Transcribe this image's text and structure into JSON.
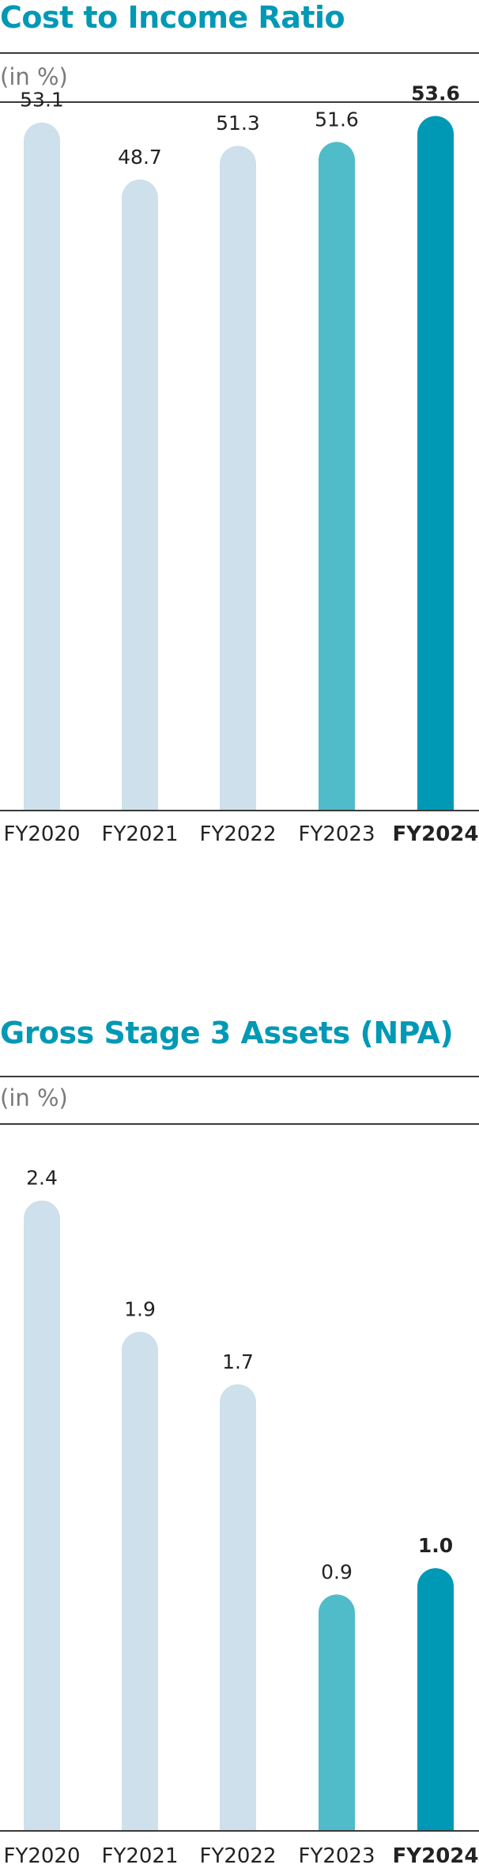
{
  "chart_data": [
    {
      "type": "bar",
      "title": "Cost to Income Ratio",
      "unit_label": "(in %)",
      "categories": [
        "FY2020",
        "FY2021",
        "FY2022",
        "FY2023",
        "FY2024"
      ],
      "values": [
        53.1,
        48.7,
        51.3,
        51.6,
        53.6
      ],
      "value_labels": [
        "53.1",
        "48.7",
        "51.3",
        "51.6",
        "53.6"
      ],
      "highlight_category": "FY2024",
      "ylim": [
        0,
        54
      ],
      "grid": false,
      "bar_shape": "rounded-top",
      "colors": {
        "bars": [
          "#cde0eb",
          "#cde0eb",
          "#cde0eb",
          "#50bbc9",
          "#0099b5"
        ],
        "title": "#0099b5",
        "highlight_text": "#0099b5"
      }
    },
    {
      "type": "bar",
      "title": "Gross Stage 3 Assets (NPA)",
      "unit_label": "(in %)",
      "categories": [
        "FY2020",
        "FY2021",
        "FY2022",
        "FY2023",
        "FY2024"
      ],
      "values": [
        2.4,
        1.9,
        1.7,
        0.9,
        1.0
      ],
      "value_labels": [
        "2.4",
        "1.9",
        "1.7",
        "0.9",
        "1.0"
      ],
      "highlight_category": "FY2024",
      "ylim": [
        0,
        2.45
      ],
      "grid": false,
      "bar_shape": "rounded-top",
      "colors": {
        "bars": [
          "#cde0eb",
          "#cde0eb",
          "#cde0eb",
          "#50bbc9",
          "#0099b5"
        ],
        "title": "#0099b5",
        "highlight_text": "#0099b5"
      }
    }
  ]
}
